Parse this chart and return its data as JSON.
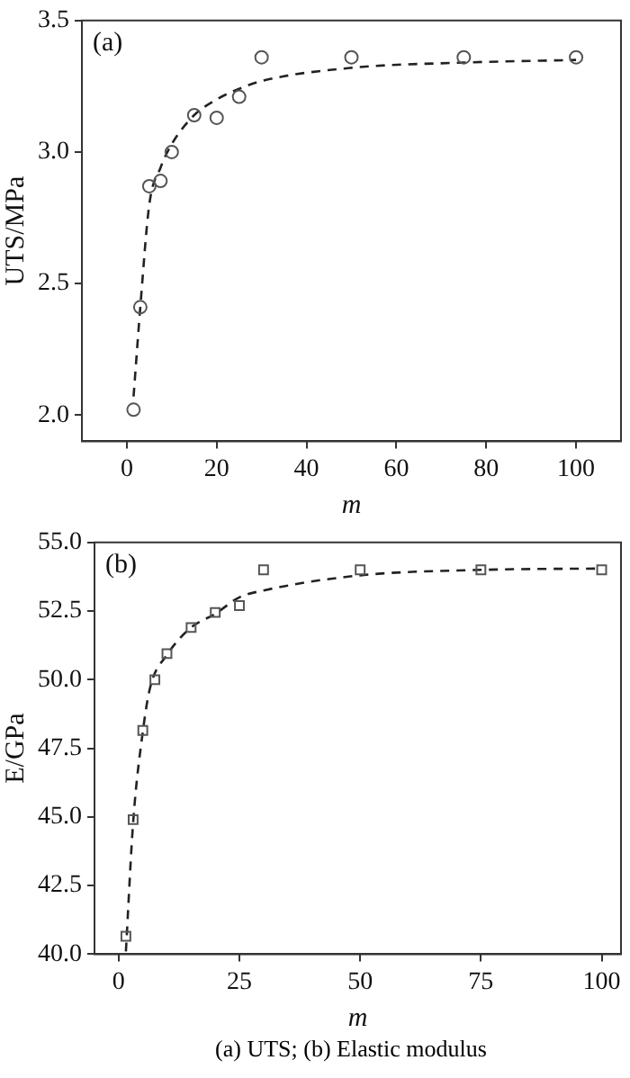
{
  "chart_data": [
    {
      "type": "scatter",
      "title": "(a)",
      "xlabel": "m",
      "ylabel": "UTS/MPa",
      "grid": false,
      "legend": false,
      "xlim": [
        -10,
        110
      ],
      "xticks": [
        0,
        20,
        40,
        60,
        80,
        100
      ],
      "ylim": [
        1.9,
        3.5
      ],
      "yticks": [
        {
          "value": 2,
          "label": "2.0"
        },
        {
          "value": 2.5,
          "label": "2.5"
        },
        {
          "value": 3,
          "label": "3.0"
        },
        {
          "value": 3.5,
          "label": "3.5"
        }
      ],
      "series": [
        {
          "type": "scatter",
          "color": "#555555",
          "marker": "circle",
          "x": [
            1.5,
            3,
            5,
            7.5,
            10,
            15,
            20,
            25,
            30,
            50,
            75,
            100
          ],
          "values": [
            2.02,
            2.41,
            2.87,
            2.89,
            3.0,
            3.14,
            3.13,
            3.21,
            3.36,
            3.36,
            3.36,
            3.36
          ]
        },
        {
          "type": "line",
          "color": "#222222",
          "marker": "none",
          "line_style": "dashed",
          "x": [
            1.5,
            3,
            5,
            7.5,
            10,
            15,
            20,
            25,
            30,
            50,
            75,
            100
          ],
          "values": [
            2.07,
            2.41,
            2.8,
            2.94,
            3.03,
            3.14,
            3.2,
            3.24,
            3.27,
            3.32,
            3.34,
            3.35
          ]
        }
      ]
    },
    {
      "type": "scatter",
      "title": "(b)",
      "xlabel": "m",
      "ylabel": "E/GPa",
      "grid": false,
      "legend": false,
      "xlim": [
        -5,
        104
      ],
      "xticks": [
        0,
        25,
        50,
        75,
        100
      ],
      "ylim": [
        40,
        55
      ],
      "yticks": [
        {
          "value": 40,
          "label": "40.0"
        },
        {
          "value": 42.5,
          "label": "42.5"
        },
        {
          "value": 45,
          "label": "45.0"
        },
        {
          "value": 47.5,
          "label": "47.5"
        },
        {
          "value": 50,
          "label": "50.0"
        },
        {
          "value": 52.5,
          "label": "52.5"
        },
        {
          "value": 55,
          "label": "55.0"
        }
      ],
      "annotations": [
        "(a) UTS; (b) Elastic modulus"
      ],
      "series": [
        {
          "type": "scatter",
          "color": "#555555",
          "marker": "square",
          "x": [
            1.5,
            3,
            5,
            7.5,
            10,
            15,
            20,
            25,
            30,
            50,
            75,
            100
          ],
          "values": [
            40.65,
            44.9,
            48.15,
            50.0,
            50.95,
            51.9,
            52.45,
            52.7,
            54.0,
            54.0,
            54.0,
            54.0
          ]
        },
        {
          "type": "line",
          "color": "#222222",
          "marker": "none",
          "line_style": "dashed",
          "x": [
            1.5,
            3,
            5,
            6.5,
            10,
            15,
            20,
            25,
            30,
            50,
            75,
            100
          ],
          "values": [
            40.1,
            44.8,
            48.1,
            49.7,
            50.9,
            51.9,
            52.4,
            53.0,
            53.25,
            53.8,
            54.0,
            54.05
          ]
        }
      ]
    }
  ]
}
